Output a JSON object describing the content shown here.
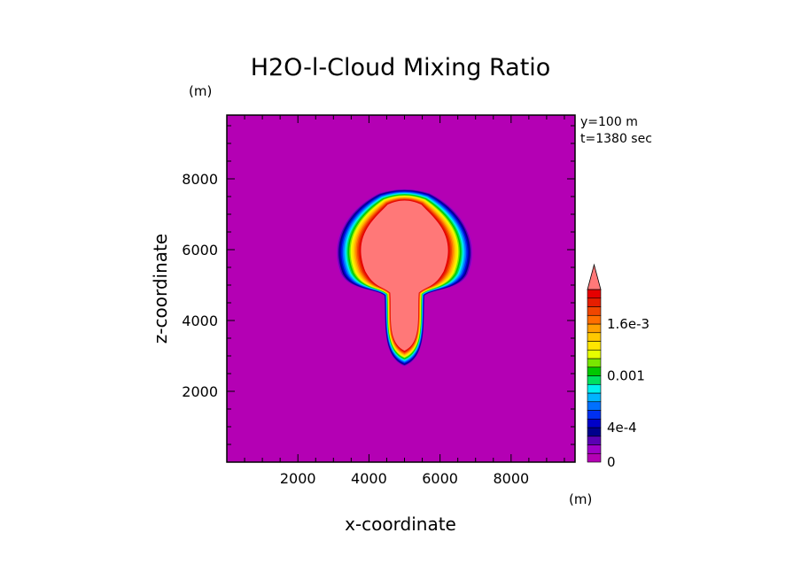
{
  "chart_data": {
    "type": "heatmap",
    "title": "H2O-l-Cloud Mixing Ratio",
    "xlabel": "x-coordinate",
    "ylabel": "z-coordinate",
    "x_unit": "(m)",
    "y_unit": "(m)",
    "annotations": [
      "y=100 m",
      "t=1380 sec"
    ],
    "xlim": [
      0,
      9800
    ],
    "ylim": [
      0,
      9800
    ],
    "xticks": [
      2000,
      4000,
      6000,
      8000
    ],
    "yticks": [
      2000,
      4000,
      6000,
      8000
    ],
    "colorbar": {
      "levels": [
        0,
        0.0001,
        0.0002,
        0.0003,
        0.0004,
        0.0005,
        0.0006,
        0.0007,
        0.0008,
        0.0009,
        0.001,
        0.0011,
        0.0012,
        0.0013,
        0.0014,
        0.0015,
        0.0016,
        0.0017,
        0.0018,
        0.0019,
        0.002
      ],
      "tick_labels": [
        {
          "value": 0,
          "label": "0"
        },
        {
          "value": 0.0004,
          "label": "4e-4"
        },
        {
          "value": 0.001,
          "label": "0.001"
        },
        {
          "value": 0.0016,
          "label": "1.6e-3"
        }
      ],
      "extend": "max",
      "colors": [
        "#b400b4",
        "#a000c8",
        "#5a00b4",
        "#00008c",
        "#0000c8",
        "#0030f0",
        "#0070ff",
        "#00b4ff",
        "#00f0f0",
        "#00e060",
        "#00c800",
        "#78e600",
        "#e6ff00",
        "#ffe600",
        "#ffc800",
        "#ffa000",
        "#ff6e00",
        "#f04600",
        "#e61e00",
        "#e60000"
      ],
      "over_color": "#ff7878"
    },
    "feature": {
      "shape": "mushroom-shaped cloud",
      "center_x": 5000,
      "cap_z_range": [
        4800,
        7700
      ],
      "cap_x_range": [
        3000,
        7100
      ],
      "stem_z_range": [
        2700,
        4800
      ],
      "peak_value_exceeds": 0.002
    }
  }
}
